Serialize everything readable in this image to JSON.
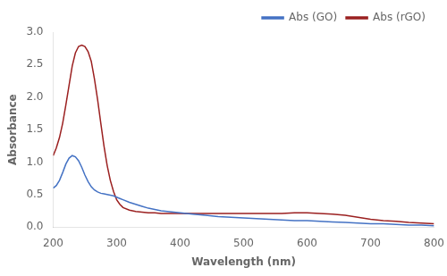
{
  "chart_data": {
    "type": "line",
    "xlabel": "Wavelength (nm)",
    "ylabel": "Absorbance",
    "x": [
      200,
      205,
      210,
      215,
      220,
      225,
      230,
      235,
      240,
      245,
      250,
      255,
      260,
      265,
      270,
      275,
      280,
      285,
      290,
      295,
      300,
      305,
      310,
      320,
      330,
      340,
      350,
      360,
      370,
      380,
      390,
      400,
      420,
      440,
      460,
      480,
      500,
      520,
      540,
      560,
      580,
      600,
      620,
      640,
      660,
      680,
      700,
      720,
      740,
      760,
      780,
      800
    ],
    "series": [
      {
        "name": "Abs (GO)",
        "color": "#4472c4",
        "values": [
          0.6,
          0.64,
          0.72,
          0.84,
          0.97,
          1.06,
          1.1,
          1.08,
          1.02,
          0.92,
          0.8,
          0.7,
          0.62,
          0.57,
          0.54,
          0.52,
          0.51,
          0.5,
          0.49,
          0.48,
          0.46,
          0.44,
          0.42,
          0.38,
          0.35,
          0.32,
          0.29,
          0.27,
          0.25,
          0.24,
          0.23,
          0.22,
          0.2,
          0.18,
          0.16,
          0.15,
          0.14,
          0.13,
          0.12,
          0.11,
          0.1,
          0.1,
          0.09,
          0.08,
          0.07,
          0.06,
          0.05,
          0.05,
          0.04,
          0.03,
          0.03,
          0.02
        ]
      },
      {
        "name": "Abs (rGO)",
        "color": "#9B2020",
        "values": [
          1.1,
          1.22,
          1.38,
          1.6,
          1.88,
          2.18,
          2.48,
          2.68,
          2.78,
          2.8,
          2.78,
          2.7,
          2.55,
          2.28,
          1.96,
          1.6,
          1.25,
          0.95,
          0.72,
          0.55,
          0.42,
          0.35,
          0.3,
          0.26,
          0.24,
          0.23,
          0.22,
          0.22,
          0.21,
          0.21,
          0.21,
          0.21,
          0.21,
          0.21,
          0.21,
          0.21,
          0.21,
          0.21,
          0.21,
          0.21,
          0.22,
          0.22,
          0.21,
          0.2,
          0.18,
          0.15,
          0.12,
          0.1,
          0.09,
          0.07,
          0.06,
          0.05
        ]
      }
    ],
    "xlim": [
      200,
      800
    ],
    "ylim": [
      0,
      3
    ],
    "xticks": [
      200,
      300,
      400,
      500,
      600,
      700,
      800
    ],
    "yticks": [
      {
        "value": 0,
        "label": "0.0"
      },
      0.5,
      {
        "value": 1,
        "label": "1.0"
      },
      1.5,
      {
        "value": 2,
        "label": "2.0"
      },
      2.5,
      {
        "value": 3,
        "label": "3.0"
      }
    ],
    "grid": false,
    "legend": "upper right"
  }
}
